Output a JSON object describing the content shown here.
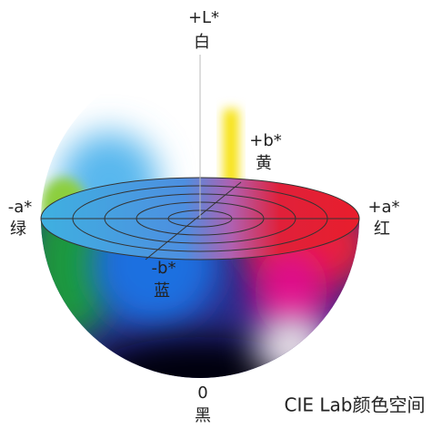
{
  "axes": [
    {
      "label": "+L*",
      "name": "白"
    },
    {
      "label": "+b*",
      "name": "黄"
    },
    {
      "label": "-a*",
      "name": "绿"
    },
    {
      "label": "+a*",
      "name": "红"
    },
    {
      "label": "-b*",
      "name": "蓝"
    },
    {
      "label": "0",
      "name": "黑"
    }
  ],
  "caption": "CIE Lab颜色空间"
}
